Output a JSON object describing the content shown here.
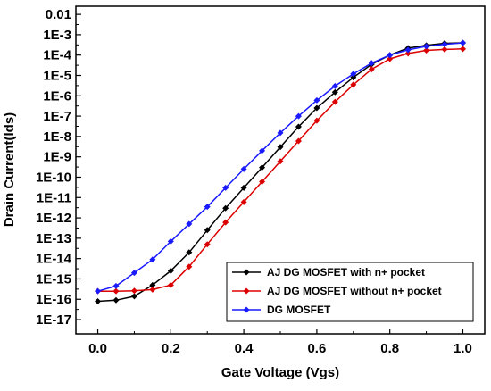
{
  "chart_data": {
    "type": "line",
    "xlabel": "Gate Voltage (Vgs)",
    "ylabel": "Drain Current(Ids)",
    "xlim": [
      -0.06,
      1.06
    ],
    "ylim_log10": [
      -17.7,
      -1.6
    ],
    "y_scale": "log",
    "x_ticks": [
      "0.0",
      "0.2",
      "0.4",
      "0.6",
      "0.8",
      "1.0"
    ],
    "x_tick_values": [
      0.0,
      0.2,
      0.4,
      0.6,
      0.8,
      1.0
    ],
    "y_ticks": [
      "0.01",
      "1E-3",
      "1E-4",
      "1E-5",
      "1E-6",
      "1E-7",
      "1E-8",
      "1E-9",
      "1E-10",
      "1E-11",
      "1E-12",
      "1E-13",
      "1E-14",
      "1E-15",
      "1E-16",
      "1E-17"
    ],
    "y_tick_exponents": [
      -2,
      -3,
      -4,
      -5,
      -6,
      -7,
      -8,
      -9,
      -10,
      -11,
      -12,
      -13,
      -14,
      -15,
      -16,
      -17
    ],
    "legend_position": "bottom-right",
    "grid": false,
    "x": [
      0.0,
      0.05,
      0.1,
      0.15,
      0.2,
      0.25,
      0.3,
      0.35,
      0.4,
      0.45,
      0.5,
      0.55,
      0.6,
      0.65,
      0.7,
      0.75,
      0.8,
      0.85,
      0.9,
      0.95,
      1.0
    ],
    "series": [
      {
        "name": "AJ DG MOSFET with n+ pocket",
        "color": "#000000",
        "values": [
          8e-17,
          9e-17,
          1.4e-16,
          5e-16,
          2.5e-15,
          2e-14,
          2.5e-13,
          3e-12,
          3e-11,
          3e-10,
          3e-09,
          3e-08,
          2.5e-07,
          1.5e-06,
          8e-06,
          3.5e-05,
          0.0001,
          0.00022,
          0.0003,
          0.00038,
          0.0004
        ]
      },
      {
        "name": "AJ DG MOSFET without n+ pocket",
        "color": "#dd0000",
        "values": [
          2.5e-16,
          2.5e-16,
          2.6e-16,
          3e-16,
          5e-16,
          4e-15,
          5e-14,
          6e-13,
          6e-12,
          6e-11,
          6e-10,
          6e-09,
          6e-08,
          5e-07,
          3.5e-06,
          2e-05,
          6.5e-05,
          0.00012,
          0.00017,
          0.00019,
          0.0002
        ]
      },
      {
        "name": "DG MOSFET",
        "color": "#1a1aff",
        "values": [
          2.5e-16,
          4.5e-16,
          2e-15,
          9e-15,
          7e-14,
          5e-13,
          3.5e-12,
          3e-11,
          2.5e-10,
          2e-09,
          1.5e-08,
          1e-07,
          6e-07,
          3e-06,
          1.2e-05,
          4e-05,
          0.0001,
          0.00018,
          0.00027,
          0.00034,
          0.0004
        ]
      }
    ]
  }
}
